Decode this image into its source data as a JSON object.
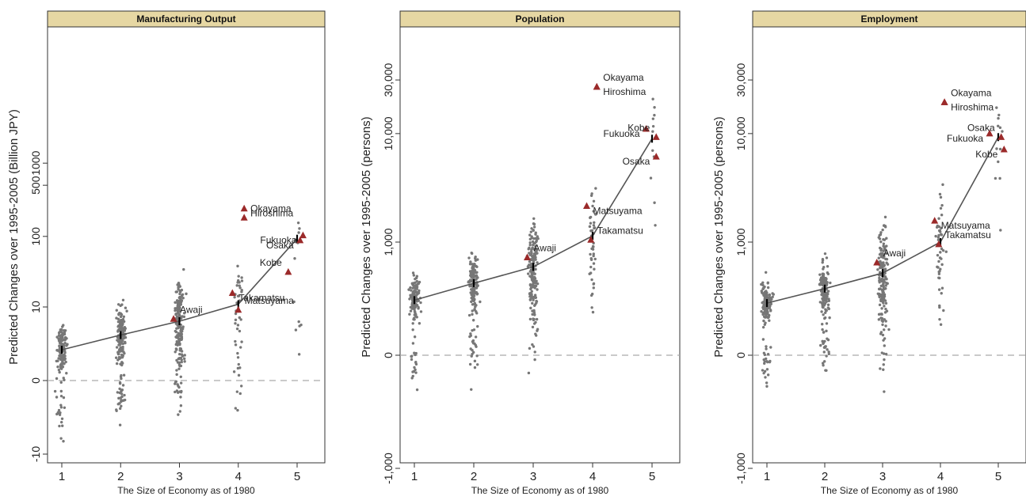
{
  "chart_data": [
    {
      "type": "scatter",
      "title": "Manufacturing Output",
      "xlabel": "The Size of Economy as of 1980",
      "ylabel": "Predicted Changes over 1995-2005 (Billion JPY)",
      "y_scale": "symmetric-log",
      "x_ticks": [
        "1",
        "2",
        "3",
        "4",
        "5"
      ],
      "y_ticks": [
        "-10",
        "0",
        "10",
        "100",
        "500",
        "1000"
      ],
      "grid": false,
      "fitted_line": {
        "x": [
          1,
          2,
          3,
          4,
          5
        ],
        "y": [
          1.8,
          3.5,
          6.0,
          11.0,
          93.0
        ]
      },
      "highlighted_points": [
        {
          "label": "Awaji",
          "x": 2.9,
          "y": 6.5
        },
        {
          "label": "Takamatsu",
          "x": 3.9,
          "y": 16
        },
        {
          "label": "Matsuyama",
          "x": 4.0,
          "y": 9
        },
        {
          "label": "Hiroshima",
          "x": 4.1,
          "y": 240
        },
        {
          "label": "Okayama",
          "x": 4.1,
          "y": 180
        },
        {
          "label": "Fukuoka",
          "x": 5.1,
          "y": 103
        },
        {
          "label": "Kobe",
          "x": 4.85,
          "y": 32
        },
        {
          "label": "Osaka",
          "x": 5.05,
          "y": 88
        }
      ]
    },
    {
      "type": "scatter",
      "title": "Population",
      "xlabel": "The Size of Economy as of 1980",
      "ylabel": "Predicted Changes over 1995-2005 (persons)",
      "y_scale": "symmetric-log",
      "x_ticks": [
        "1",
        "2",
        "3",
        "4",
        "5"
      ],
      "y_ticks": [
        "-1,000",
        "0",
        "1,000",
        "10,000",
        "30,000"
      ],
      "grid": false,
      "fitted_line": {
        "x": [
          1,
          2,
          3,
          4,
          5
        ],
        "y": [
          230,
          370,
          560,
          1150,
          9000
        ]
      },
      "highlighted_points": [
        {
          "label": "Awaji",
          "x": 2.9,
          "y": 700
        },
        {
          "label": "Matsuyama",
          "x": 3.9,
          "y": 2200
        },
        {
          "label": "Takamatsu",
          "x": 3.97,
          "y": 1050
        },
        {
          "label": "Hiroshima",
          "x": 4.07,
          "y": 26000
        },
        {
          "label": "Okayama",
          "x": 4.07,
          "y": 26000
        },
        {
          "label": "Fukuoka",
          "x": 4.9,
          "y": 11000
        },
        {
          "label": "Kobe",
          "x": 5.07,
          "y": 9300
        },
        {
          "label": "Osaka",
          "x": 5.07,
          "y": 6200
        }
      ]
    },
    {
      "type": "scatter",
      "title": "Employment",
      "xlabel": "The Size of Economy as of 1980",
      "ylabel": "Predicted Changes over 1995-2005 (persons)",
      "y_scale": "symmetric-log",
      "x_ticks": [
        "1",
        "2",
        "3",
        "4",
        "5"
      ],
      "y_ticks": [
        "-1,000",
        "0",
        "1,000",
        "10,000",
        "30,000"
      ],
      "grid": false,
      "fitted_line": {
        "x": [
          1,
          2,
          3,
          4,
          5
        ],
        "y": [
          210,
          320,
          480,
          1000,
          9300
        ]
      },
      "highlighted_points": [
        {
          "label": "Awaji",
          "x": 2.9,
          "y": 620
        },
        {
          "label": "Matsuyama",
          "x": 3.9,
          "y": 1600
        },
        {
          "label": "Takamatsu",
          "x": 3.97,
          "y": 950
        },
        {
          "label": "Hiroshima",
          "x": 4.07,
          "y": 19000
        },
        {
          "label": "Okayama",
          "x": 4.07,
          "y": 19000
        },
        {
          "label": "Fukuoka",
          "x": 4.85,
          "y": 10000
        },
        {
          "label": "Osaka",
          "x": 5.05,
          "y": 9300
        },
        {
          "label": "Kobe",
          "x": 5.1,
          "y": 7200
        }
      ]
    }
  ]
}
